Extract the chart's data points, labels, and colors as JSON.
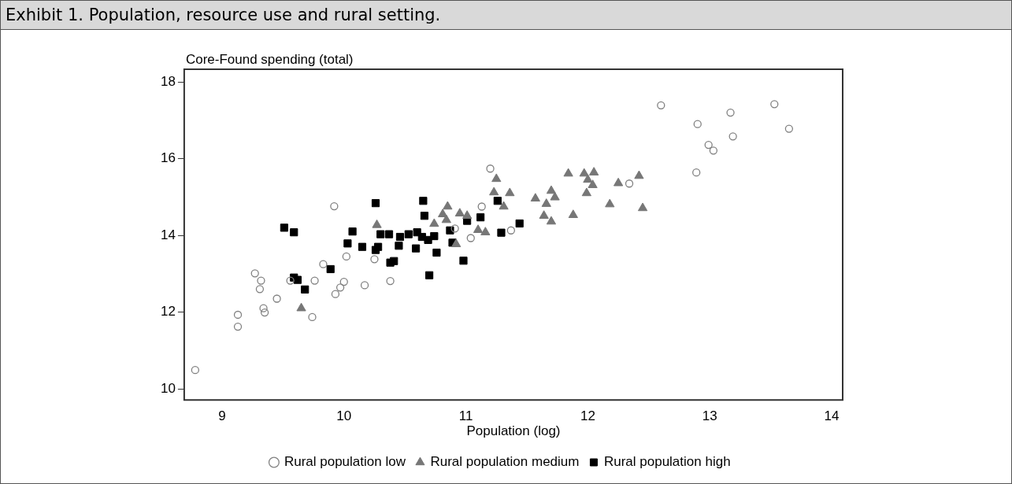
{
  "chart_data": {
    "type": "scatter",
    "title": "Exhibit 1. Population, resource use and rural setting.",
    "ylabel": "Core-Found spending (total)",
    "xlabel": "Population (log)",
    "xlim": [
      8.69,
      14.09
    ],
    "xticks": [
      9,
      10,
      11,
      12,
      13,
      14
    ],
    "ylim": [
      9.71,
      18.33
    ],
    "yticks": [
      10,
      12,
      14,
      16,
      18
    ],
    "grid": false,
    "legend": "bottom",
    "series": [
      {
        "name": "Rural population low",
        "color": "#808080",
        "marker": "circle",
        "x": [
          8.78,
          9.13,
          9.13,
          9.27,
          9.32,
          9.31,
          9.34,
          9.35,
          9.45,
          9.56,
          9.76,
          9.74,
          9.83,
          9.92,
          9.93,
          9.97,
          10.0,
          10.02,
          10.17,
          10.25,
          10.38,
          10.91,
          11.04,
          11.13,
          11.2,
          11.37,
          12.34,
          12.6,
          12.89,
          12.9,
          12.99,
          13.03,
          13.17,
          13.19,
          13.53,
          13.65
        ],
        "values": [
          10.49,
          11.93,
          11.62,
          13.01,
          12.82,
          12.6,
          12.1,
          11.99,
          12.35,
          12.82,
          12.82,
          11.87,
          13.25,
          14.76,
          12.47,
          12.64,
          12.79,
          13.45,
          12.7,
          13.38,
          12.81,
          14.18,
          13.93,
          14.75,
          15.74,
          14.13,
          15.35,
          17.39,
          15.64,
          16.9,
          16.36,
          16.21,
          17.2,
          16.58,
          17.42,
          16.78
        ]
      },
      {
        "name": "Rural population medium",
        "color": "#777777",
        "marker": "triangle",
        "x": [
          9.65,
          10.27,
          10.74,
          10.81,
          10.84,
          10.85,
          10.92,
          10.95,
          11.01,
          11.1,
          11.16,
          11.23,
          11.25,
          11.31,
          11.36,
          11.57,
          11.64,
          11.66,
          11.7,
          11.7,
          11.73,
          11.84,
          11.88,
          11.97,
          11.99,
          12.0,
          12.04,
          12.05,
          12.18,
          12.25,
          12.42,
          12.45
        ],
        "values": [
          12.1,
          14.27,
          14.3,
          14.55,
          14.4,
          14.75,
          13.77,
          14.57,
          14.51,
          14.14,
          14.08,
          15.12,
          15.47,
          14.75,
          15.1,
          14.96,
          14.51,
          14.82,
          15.16,
          14.36,
          14.99,
          15.61,
          14.53,
          15.61,
          15.1,
          15.45,
          15.31,
          15.64,
          14.81,
          15.36,
          15.55,
          14.71
        ]
      },
      {
        "name": "Rural population high",
        "color": "#000000",
        "marker": "square",
        "x": [
          9.51,
          9.59,
          9.59,
          9.62,
          9.68,
          9.89,
          10.03,
          10.07,
          10.15,
          10.26,
          10.26,
          10.28,
          10.3,
          10.37,
          10.38,
          10.41,
          10.45,
          10.46,
          10.53,
          10.59,
          10.6,
          10.64,
          10.65,
          10.66,
          10.69,
          10.7,
          10.74,
          10.76,
          10.87,
          10.89,
          10.98,
          11.01,
          11.12,
          11.26,
          11.29,
          11.44
        ],
        "values": [
          14.2,
          14.08,
          12.9,
          12.84,
          12.59,
          13.12,
          13.79,
          14.1,
          13.7,
          14.84,
          13.62,
          13.7,
          14.03,
          14.03,
          13.29,
          13.33,
          13.73,
          13.96,
          14.03,
          13.66,
          14.08,
          13.96,
          14.9,
          14.51,
          13.88,
          12.96,
          13.98,
          13.55,
          14.13,
          13.81,
          13.34,
          14.38,
          14.47,
          14.9,
          14.07,
          14.31
        ]
      }
    ]
  }
}
